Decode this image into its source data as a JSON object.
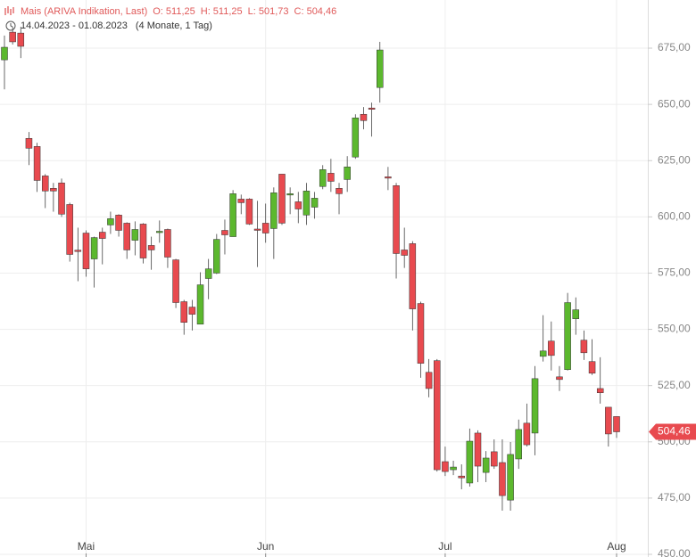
{
  "chart_data": {
    "type": "candlestick",
    "title": "Mais (ARIVA Indikation, Last)",
    "quote": [
      "O: 511,25",
      "H: 511,25",
      "L: 501,73",
      "C: 504,46"
    ],
    "range_text": "14.04.2023 - 01.08.2023",
    "period_text": "(4 Monate, 1 Tag)",
    "categories": [
      null,
      null,
      null,
      null,
      null,
      null,
      null,
      null,
      null,
      null,
      "Mai",
      null,
      null,
      null,
      null,
      null,
      null,
      null,
      null,
      null,
      null,
      null,
      null,
      null,
      null,
      null,
      null,
      null,
      null,
      null,
      null,
      null,
      "Jun",
      null,
      null,
      null,
      null,
      null,
      null,
      null,
      null,
      null,
      null,
      null,
      null,
      null,
      null,
      null,
      null,
      null,
      null,
      null,
      null,
      null,
      "Jul",
      null,
      null,
      null,
      null,
      null,
      null,
      null,
      null,
      null,
      null,
      null,
      null,
      null,
      null,
      null,
      null,
      null,
      null,
      null,
      null,
      "Aug"
    ],
    "open": [
      669.8,
      682.1,
      681.7,
      634.9,
      631.3,
      618.2,
      612.7,
      615.1,
      605.5,
      585.2,
      592.8,
      581.3,
      593.2,
      596.4,
      600.8,
      597.2,
      589.6,
      596.8,
      587.3,
      593.2,
      594.4,
      580.9,
      562.3,
      559.9,
      552.3,
      572.6,
      575.0,
      594.0,
      591.2,
      607.9,
      607.9,
      594.6,
      597.2,
      594.8,
      619.0,
      609.9,
      606.7,
      600.8,
      604.3,
      613.5,
      619.4,
      612.7,
      616.6,
      626.6,
      645.6,
      648.4,
      657.5,
      617.8,
      613.9,
      585.3,
      588.1,
      561.5,
      530.9,
      536.1,
      491.2,
      487.6,
      484.8,
      481.7,
      503.9,
      486.4,
      495.6,
      490.8,
      474.1,
      492.4,
      508.3,
      503.9,
      538.0,
      544.8,
      528.9,
      532.1,
      554.7,
      545.2,
      535.7,
      523.7,
      515.4,
      511.25
    ],
    "high": [
      680.6,
      684.5,
      684.5,
      637.7,
      632.9,
      619.0,
      615.1,
      617.0,
      606.3,
      595.2,
      594.0,
      591.2,
      595.2,
      602.3,
      601.2,
      597.6,
      598.0,
      597.2,
      591.2,
      598.4,
      594.8,
      581.3,
      563.1,
      563.1,
      575.4,
      581.3,
      592.4,
      598.8,
      611.9,
      609.9,
      608.3,
      607.1,
      605.9,
      613.1,
      619.0,
      613.1,
      611.1,
      615.1,
      611.1,
      623.0,
      625.8,
      615.1,
      627.0,
      645.6,
      648.8,
      650.8,
      677.8,
      622.2,
      615.1,
      595.2,
      589.2,
      562.3,
      536.8,
      536.8,
      497.9,
      491.6,
      490.0,
      505.9,
      505.1,
      495.9,
      501.1,
      501.1,
      499.9,
      509.9,
      517.0,
      533.7,
      556.3,
      553.5,
      533.7,
      566.2,
      564.2,
      549.5,
      545.6,
      537.6,
      515.4,
      511.25
    ],
    "low": [
      656.7,
      676.6,
      670.6,
      623.0,
      611.1,
      603.9,
      602.3,
      600.0,
      580.1,
      571.4,
      573.4,
      568.6,
      578.9,
      592.4,
      591.2,
      581.3,
      582.9,
      579.3,
      576.5,
      588.5,
      577.3,
      559.5,
      547.6,
      549.5,
      552.3,
      563.4,
      574.6,
      583.3,
      591.2,
      601.2,
      596.4,
      577.7,
      588.5,
      581.3,
      596.4,
      601.2,
      597.2,
      596.4,
      599.2,
      612.3,
      611.1,
      601.2,
      611.1,
      625.8,
      638.9,
      635.7,
      650.8,
      611.9,
      572.6,
      577.3,
      549.5,
      528.5,
      519.8,
      486.8,
      484.8,
      485.2,
      478.9,
      480.1,
      482.1,
      482.1,
      488.0,
      469.4,
      469.4,
      488.0,
      497.9,
      494.0,
      535.7,
      531.7,
      522.6,
      531.7,
      547.6,
      536.4,
      529.7,
      517.0,
      497.9,
      501.73
    ],
    "close": [
      675.4,
      677.8,
      675.8,
      630.5,
      616.2,
      611.5,
      611.5,
      601.2,
      583.3,
      584.9,
      576.9,
      590.8,
      590.4,
      599.2,
      594.0,
      585.3,
      594.4,
      581.7,
      585.3,
      593.6,
      582.1,
      561.9,
      553.1,
      556.7,
      569.8,
      576.9,
      590.0,
      592.0,
      610.3,
      606.3,
      596.8,
      594.2,
      592.8,
      610.7,
      597.2,
      610.3,
      603.5,
      611.5,
      608.3,
      621.0,
      615.8,
      610.3,
      622.2,
      644.0,
      642.8,
      648.0,
      674.2,
      617.4,
      583.7,
      582.9,
      559.1,
      534.9,
      523.7,
      487.6,
      486.8,
      488.8,
      484.0,
      500.3,
      489.2,
      492.8,
      489.2,
      476.1,
      494.4,
      505.5,
      498.7,
      528.1,
      540.4,
      538.4,
      527.7,
      561.9,
      558.7,
      539.6,
      530.5,
      521.8,
      503.5,
      504.46
    ],
    "up_color": "#5cb82e",
    "down_color": "#e84a4f",
    "last_price": {
      "value": 504.46,
      "label": "504,46"
    },
    "ylim": [
      450,
      696.4
    ],
    "yticks": [
      {
        "value": 450,
        "label": "450,00"
      },
      {
        "value": 475,
        "label": "475,00"
      },
      {
        "value": 500,
        "label": "500,00"
      },
      {
        "value": 525,
        "label": "525,00"
      },
      {
        "value": 550,
        "label": "550,00"
      },
      {
        "value": 575,
        "label": "575,00"
      },
      {
        "value": 600,
        "label": "600,00"
      },
      {
        "value": 625,
        "label": "625,00"
      },
      {
        "value": 650,
        "label": "650,00"
      },
      {
        "value": 675,
        "label": "675,00"
      }
    ],
    "grid": true
  }
}
